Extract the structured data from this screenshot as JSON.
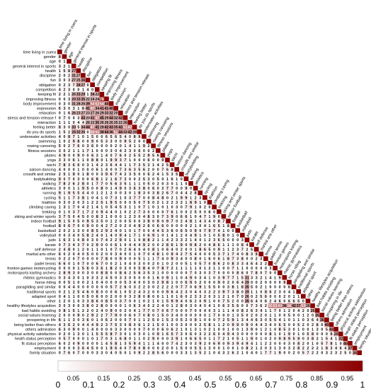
{
  "chart_data": {
    "type": "heatmap",
    "shape": "lower-triangle",
    "title": "",
    "xlabel": "",
    "ylabel": "",
    "variables": [
      "time living in zuera",
      "gender",
      "age",
      "general interest in sports",
      "health",
      "discipline",
      "fun",
      "obligation",
      "competition",
      "keeping fit",
      "improving fitness",
      "body improvement",
      "expression",
      "relaxation",
      "stress and tension release f",
      "interaction",
      "feeling better",
      "do you do sports",
      "underwater activities",
      "swimming",
      "rowing canoeing",
      "fitness sessions",
      "pilates",
      "yoga",
      "taichi",
      "saloon dancing",
      "crossfit and similar",
      "bodybuilding",
      "walking",
      "athletics",
      "running",
      "cycling",
      "triathlon",
      "climbing caving",
      "trekking",
      "skiing and winter sports",
      "indoor football",
      "football",
      "basketball",
      "volleyball",
      "judo",
      "karate",
      "self defense",
      "martial arts other",
      "tennis",
      "padel tennis",
      "fronton games motorcycling",
      "motorsports karting archery",
      "rhitmic gymnastics",
      "horse riding",
      "paragliding and similar",
      "traditional sports",
      "adapted sport",
      "other",
      "healthy lifestyles acquisition",
      "bad habits avoiding",
      "social values learning",
      "prospering in life",
      "being better than others",
      "others admiration",
      "physical activity satisfaction",
      "heath status perception",
      "fit status perception",
      "employment",
      "family situation"
    ],
    "x_labels": [
      "time living in zuera",
      "gender",
      "age",
      "general interest in sports",
      "health",
      "discipline",
      "fun",
      "obligation",
      "competition",
      "keeping fit",
      "improving fitness",
      "body improvement",
      "expression",
      "relaxation",
      "stress and tension release",
      "interaction",
      "feeling better",
      "do you do sports",
      "underwater activities",
      "swimming",
      "rowing canoeing",
      "fitness sessions",
      "pilates",
      "yoga",
      "taichi",
      "saloon dancing",
      "crossfit and similar",
      "bodybuilding",
      "walking",
      "athletics",
      "running",
      "cycling",
      "triathlon",
      "climbing caving",
      "trekking",
      "skiing and winter sports",
      "indoor football",
      "football",
      "basketball",
      "volleyball",
      "judo",
      "karate",
      "self defense",
      "martial arts other",
      "tennis",
      "padel tennis",
      "fronton games",
      "motorsports karting",
      "rhitmic gymnastics",
      "horse riding",
      "paragliding and similar",
      "traditional sports",
      "adapted sport",
      "other",
      "healthy lifestyles acquisition",
      "bad habits avoiding",
      "social values learning",
      "prospering in life",
      "being better than others",
      "others admiration",
      "physical activity satisfaction",
      "heath status perception",
      "fit status perception",
      "employment",
      "family situation"
    ],
    "cell_values_scale": "coefficient x 100",
    "strong_pairs": [
      [
        4,
        3,
        27
      ],
      [
        5,
        3,
        31
      ],
      [
        5,
        4,
        27
      ],
      [
        6,
        3,
        27
      ],
      [
        6,
        4,
        25
      ],
      [
        6,
        5,
        36
      ],
      [
        7,
        4,
        34
      ],
      [
        7,
        5,
        27
      ],
      [
        9,
        3,
        26
      ],
      [
        9,
        4,
        33
      ],
      [
        9,
        5,
        29
      ],
      [
        9,
        7,
        34
      ],
      [
        9,
        8,
        22
      ],
      [
        10,
        3,
        29
      ],
      [
        10,
        4,
        33
      ],
      [
        10,
        5,
        35
      ],
      [
        10,
        6,
        22
      ],
      [
        10,
        7,
        24
      ],
      [
        10,
        8,
        24
      ],
      [
        10,
        9,
        78
      ],
      [
        11,
        3,
        31
      ],
      [
        11,
        4,
        28
      ],
      [
        11,
        5,
        26
      ],
      [
        11,
        6,
        39
      ],
      [
        11,
        7,
        54
      ],
      [
        11,
        8,
        52
      ],
      [
        11,
        9,
        54
      ],
      [
        11,
        10,
        40
      ],
      [
        12,
        6,
        41
      ],
      [
        12,
        7,
        47
      ],
      [
        12,
        8,
        34
      ],
      [
        12,
        9,
        41
      ],
      [
        12,
        10,
        41
      ],
      [
        12,
        11,
        40
      ],
      [
        13,
        3,
        26
      ],
      [
        13,
        4,
        23
      ],
      [
        13,
        5,
        27
      ],
      [
        13,
        6,
        23
      ],
      [
        13,
        7,
        27
      ],
      [
        13,
        8,
        26
      ],
      [
        13,
        9,
        29
      ],
      [
        13,
        10,
        33
      ],
      [
        13,
        11,
        32
      ],
      [
        13,
        12,
        20
      ],
      [
        14,
        5,
        43
      ],
      [
        14,
        6,
        20
      ],
      [
        14,
        7,
        41
      ],
      [
        14,
        8,
        47
      ],
      [
        14,
        9,
        45
      ],
      [
        14,
        10,
        29
      ],
      [
        14,
        11,
        44
      ],
      [
        14,
        12,
        32
      ],
      [
        14,
        13,
        42
      ],
      [
        15,
        6,
        26
      ],
      [
        15,
        7,
        22
      ],
      [
        15,
        8,
        36
      ],
      [
        15,
        9,
        26
      ],
      [
        15,
        10,
        26
      ],
      [
        15,
        11,
        26
      ],
      [
        15,
        12,
        25
      ],
      [
        15,
        13,
        22
      ],
      [
        15,
        14,
        26
      ],
      [
        16,
        3,
        33
      ],
      [
        16,
        5,
        34
      ],
      [
        16,
        6,
        44
      ],
      [
        16,
        7,
        47
      ],
      [
        16,
        8,
        42
      ],
      [
        16,
        9,
        28
      ],
      [
        16,
        10,
        42
      ],
      [
        16,
        11,
        43
      ],
      [
        16,
        12,
        35
      ],
      [
        16,
        13,
        43
      ],
      [
        16,
        14,
        51
      ],
      [
        16,
        15,
        47
      ],
      [
        17,
        3,
        28
      ],
      [
        17,
        4,
        32
      ],
      [
        17,
        5,
        26
      ],
      [
        17,
        7,
        50
      ],
      [
        17,
        8,
        55
      ],
      [
        17,
        9,
        38
      ],
      [
        17,
        10,
        44
      ],
      [
        17,
        11,
        36
      ],
      [
        17,
        12,
        51
      ],
      [
        17,
        13,
        44
      ],
      [
        17,
        14,
        33
      ],
      [
        17,
        15,
        42
      ],
      [
        17,
        16,
        28
      ],
      [
        48,
        40,
        31
      ],
      [
        49,
        40,
        29
      ],
      [
        50,
        40,
        35
      ],
      [
        51,
        40,
        29
      ],
      [
        52,
        40,
        26
      ],
      [
        53,
        40,
        35
      ],
      [
        54,
        45,
        55
      ],
      [
        54,
        46,
        53
      ],
      [
        54,
        47,
        60
      ],
      [
        54,
        48,
        36
      ],
      [
        54,
        49,
        56
      ],
      [
        54,
        50,
        42
      ],
      [
        54,
        51,
        37
      ],
      [
        54,
        52,
        53
      ],
      [
        54,
        53,
        26
      ],
      [
        55,
        54,
        26
      ],
      [
        56,
        55,
        35
      ],
      [
        57,
        56,
        36
      ],
      [
        58,
        57,
        40
      ],
      [
        59,
        58,
        43
      ],
      [
        60,
        59,
        29
      ],
      [
        61,
        60,
        32
      ],
      [
        62,
        61,
        40
      ],
      [
        63,
        62,
        37
      ],
      [
        64,
        63,
        34
      ]
    ],
    "colorbar": {
      "range": [
        0,
        1
      ],
      "tick_labels": [
        "0",
        "0.05",
        "0.1",
        "0.15",
        "0.2",
        "0.25",
        "0.3",
        "0.35",
        "0.4",
        "0.45",
        "0.5",
        "0.55",
        "0.6",
        "0.65",
        "0.7",
        "0.75",
        "0.8",
        "0.85",
        "0.9",
        "0.95",
        "1"
      ],
      "low_color": "#ffffff",
      "high_color": "#8b0000"
    },
    "diagonal_color": "#8b0000",
    "grid": false,
    "legend": "bottom colorbar"
  }
}
